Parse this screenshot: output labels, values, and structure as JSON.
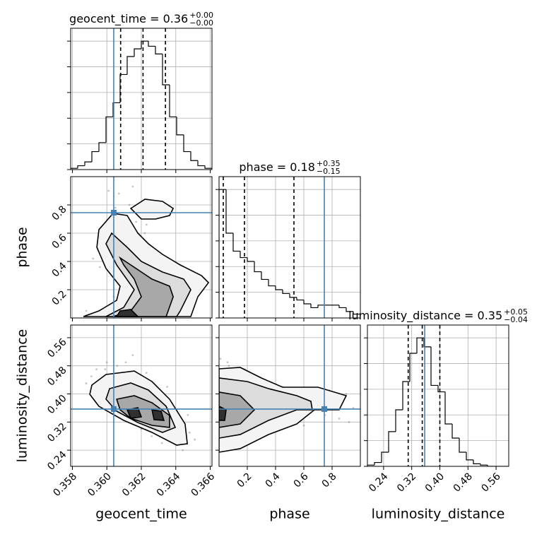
{
  "chart_data": [
    {
      "type": "histogram",
      "title": "geocent_time = 0.36",
      "title_upper": "+0.00",
      "title_lower": "−0.00",
      "bins": [
        0.3579,
        0.35831,
        0.35872,
        0.35913,
        0.35954,
        0.35995,
        0.36036,
        0.36077,
        0.36118,
        0.36159,
        0.362,
        0.36241,
        0.36282,
        0.36323,
        0.36364,
        0.36405,
        0.36446,
        0.36487,
        0.36528,
        0.36569,
        0.3661
      ],
      "values": [
        1,
        3,
        6,
        14,
        21,
        41,
        52,
        74,
        88,
        94,
        100,
        96,
        90,
        66,
        41,
        27,
        14,
        7,
        3,
        1
      ],
      "color": "#000000",
      "xlim": [
        0.3579,
        0.3661
      ],
      "ylim": [
        0,
        110
      ],
      "xticks": [
        0.358,
        {
          "value": 0.36,
          "label": "0.360"
        },
        0.362,
        0.364,
        0.366
      ],
      "yticks": [
        0,
        20,
        40,
        60,
        80,
        100
      ],
      "quantiles": [
        0.3608,
        0.3621,
        0.3634
      ],
      "truth": 0.3604,
      "truth_color": "#4682b4",
      "grid": true
    },
    {
      "type": "contour",
      "ylabel": "phase",
      "xlim": [
        0.3579,
        0.3661
      ],
      "ylim": [
        0,
        1
      ],
      "xticks": [
        0.358,
        {
          "value": 0.36,
          "label": "0.360"
        },
        0.362,
        0.364,
        0.366
      ],
      "yticks": [
        0.2,
        0.4,
        0.6,
        0.8
      ],
      "samples": {
        "color": "#808080",
        "x": [
          0.3588,
          0.3592,
          0.3596,
          0.3599,
          0.3601,
          0.3603,
          0.3605,
          0.3607,
          0.3609,
          0.3611,
          0.3613,
          0.3615,
          0.3617,
          0.3619,
          0.3621,
          0.3623,
          0.3625,
          0.3627,
          0.3629,
          0.3631,
          0.3633,
          0.3635,
          0.3637,
          0.364,
          0.3643,
          0.3646,
          0.3649,
          0.3652,
          0.3598,
          0.3604,
          0.361,
          0.3616,
          0.3622,
          0.3628,
          0.3602,
          0.3606
        ],
        "y": [
          0.05,
          0.42,
          0.36,
          0.58,
          0.9,
          0.62,
          0.78,
          0.88,
          0.55,
          0.47,
          0.8,
          0.93,
          0.68,
          0.72,
          0.82,
          0.66,
          0.45,
          0.38,
          0.35,
          0.31,
          0.28,
          0.22,
          0.33,
          0.18,
          0.26,
          0.3,
          0.12,
          0.2,
          0.02,
          0.15,
          0.3,
          0.5,
          0.6,
          0.1,
          0.7,
          0.45
        ]
      },
      "contours": [
        {
          "fill": "#f4f4f4",
          "x": [
            0.35864,
            0.35954,
            0.36057,
            0.36077,
            0.35995,
            0.35942,
            0.35954,
            0.36036,
            0.36118,
            0.3618,
            0.36241,
            0.36323,
            0.36426,
            0.36549,
            0.3659,
            0.36528,
            0.36487
          ],
          "y": [
            0.01,
            0.05,
            0.125,
            0.225,
            0.35,
            0.5,
            0.625,
            0.74,
            0.725,
            0.6,
            0.525,
            0.45,
            0.375,
            0.3,
            0.25,
            0.15,
            0.01
          ]
        },
        {
          "fill": "#f4f4f4",
          "x": [
            0.36139,
            0.36221,
            0.36323,
            0.36385,
            0.36364,
            0.36282,
            0.362
          ],
          "y": [
            0.775,
            0.84,
            0.825,
            0.775,
            0.725,
            0.7,
            0.7
          ]
        },
        {
          "fill": "#dcdcdc",
          "x": [
            0.35995,
            0.36098,
            0.36159,
            0.36057,
            0.35995,
            0.36028,
            0.36118,
            0.362,
            0.36323,
            0.36446,
            0.36487,
            0.36426,
            0.36405
          ],
          "y": [
            0.01,
            0.075,
            0.2,
            0.375,
            0.525,
            0.6,
            0.5,
            0.4,
            0.325,
            0.275,
            0.2,
            0.05,
            0.01
          ]
        },
        {
          "fill": "#a8a8a8",
          "x": [
            0.36036,
            0.36139,
            0.362,
            0.36159,
            0.36098,
            0.36077,
            0.36139,
            0.36262,
            0.36364,
            0.36385,
            0.36344
          ],
          "y": [
            0.01,
            0.05,
            0.15,
            0.275,
            0.375,
            0.425,
            0.375,
            0.275,
            0.225,
            0.15,
            0.01
          ]
        },
        {
          "fill": "#303030",
          "x": [
            0.36057,
            0.36077,
            0.36139,
            0.3618
          ],
          "y": [
            0.01,
            0.05,
            0.06,
            0.01
          ]
        }
      ],
      "truth": [
        0.3604,
        0.745
      ],
      "truth_color": "#4682b4",
      "grid": true
    },
    {
      "type": "histogram",
      "title": "phase = 0.18",
      "title_upper": "+0.35",
      "title_lower": "−0.15",
      "bins": [
        0,
        0.05,
        0.1,
        0.15,
        0.2,
        0.25,
        0.3,
        0.35,
        0.4,
        0.45,
        0.5,
        0.55,
        0.6,
        0.65,
        0.7,
        0.75,
        0.8,
        0.85,
        0.9,
        0.95,
        1.0
      ],
      "values": [
        100,
        66,
        52,
        47,
        44,
        36,
        30,
        25,
        22,
        19,
        16,
        14,
        11,
        8,
        10,
        10,
        10,
        8,
        5,
        3
      ],
      "color": "#000000",
      "xlim": [
        0,
        1
      ],
      "ylim": [
        0,
        110
      ],
      "xticks": [
        0.2,
        0.4,
        0.6,
        0.8
      ],
      "yticks": [
        0,
        20,
        40,
        60,
        80,
        100
      ],
      "quantiles": [
        0.03,
        0.18,
        0.53
      ],
      "truth": 0.745,
      "truth_color": "#4682b4",
      "grid": true
    },
    {
      "type": "contour",
      "xlabel": "geocent_time",
      "ylabel": "luminosity_distance",
      "xlim": [
        0.3579,
        0.3661
      ],
      "ylim": [
        0.194,
        0.596
      ],
      "xticks": [
        0.358,
        {
          "value": 0.36,
          "label": "0.360"
        },
        0.362,
        0.364,
        0.366
      ],
      "yticks": [
        0.24,
        0.32,
        {
          "value": 0.4,
          "label": "0.40"
        },
        0.48,
        0.56
      ],
      "samples": {
        "color": "#808080",
        "x": [
          0.3588,
          0.3591,
          0.3594,
          0.3597,
          0.36,
          0.3603,
          0.3606,
          0.3609,
          0.3612,
          0.3615,
          0.3618,
          0.3621,
          0.3624,
          0.3627,
          0.363,
          0.3633,
          0.3636,
          0.3639,
          0.3642,
          0.3645,
          0.3648,
          0.3651,
          0.3596,
          0.3602,
          0.3608,
          0.3614,
          0.362,
          0.3626,
          0.3632,
          0.3638,
          0.3644,
          0.3599,
          0.3611,
          0.3623,
          0.3635,
          0.3647
        ],
        "y": [
          0.43,
          0.45,
          0.47,
          0.4,
          0.49,
          0.44,
          0.48,
          0.46,
          0.42,
          0.51,
          0.44,
          0.39,
          0.41,
          0.35,
          0.37,
          0.3,
          0.33,
          0.28,
          0.31,
          0.26,
          0.29,
          0.27,
          0.37,
          0.39,
          0.35,
          0.33,
          0.3,
          0.28,
          0.26,
          0.36,
          0.24,
          0.47,
          0.49,
          0.46,
          0.42,
          0.34
        ]
      },
      "contours": [
        {
          "fill": "#f4f4f4",
          "x": [
            0.35913,
            0.35995,
            0.36159,
            0.36262,
            0.36364,
            0.36454,
            0.36467,
            0.36405,
            0.36262,
            0.36098,
            0.35954,
            0.35901
          ],
          "y": [
            0.4252,
            0.4553,
            0.4653,
            0.4352,
            0.385,
            0.3146,
            0.2583,
            0.2543,
            0.2905,
            0.3247,
            0.3648,
            0.399
          ]
        },
        {
          "fill": "#dcdcdc",
          "x": [
            0.36016,
            0.36139,
            0.36241,
            0.36344,
            0.36397,
            0.36323,
            0.3618,
            0.36057,
            0.35995
          ],
          "y": [
            0.4151,
            0.4312,
            0.4111,
            0.3648,
            0.3046,
            0.2905,
            0.3186,
            0.3508,
            0.385
          ]
        },
        {
          "fill": "#a8a8a8",
          "x": [
            0.36057,
            0.36159,
            0.36262,
            0.36364,
            0.36364,
            0.36262,
            0.36139,
            0.36077
          ],
          "y": [
            0.385,
            0.395,
            0.3749,
            0.3387,
            0.3046,
            0.3106,
            0.3307,
            0.3548
          ]
        },
        {
          "fill": "#303030",
          "x": [
            0.36118,
            0.3618,
            0.362,
            0.36139
          ],
          "y": [
            0.3548,
            0.3608,
            0.3347,
            0.3307
          ]
        },
        {
          "fill": "#303030",
          "x": [
            0.36262,
            0.36315,
            0.36331,
            0.36274
          ],
          "y": [
            0.3548,
            0.3508,
            0.3247,
            0.3267
          ]
        }
      ],
      "truth": [
        0.3604,
        0.357
      ],
      "truth_color": "#4682b4",
      "grid": true
    },
    {
      "type": "contour",
      "xlabel": "phase",
      "xlim": [
        0,
        1
      ],
      "ylim": [
        0.194,
        0.596
      ],
      "xticks": [
        0.2,
        0.4,
        0.6,
        0.8
      ],
      "yticks": [
        0.24,
        0.32,
        {
          "value": 0.4,
          "label": "0.40"
        },
        0.48,
        0.56
      ],
      "samples": {
        "color": "#808080",
        "x": [
          0.01,
          0.02,
          0.03,
          0.05,
          0.07,
          0.09,
          0.12,
          0.15,
          0.18,
          0.22,
          0.26,
          0.3,
          0.34,
          0.38,
          0.42,
          0.46,
          0.5,
          0.55,
          0.6,
          0.65,
          0.7,
          0.75,
          0.8,
          0.85,
          0.9,
          0.95,
          0.04,
          0.1,
          0.2,
          0.3,
          0.45,
          0.6,
          0.78,
          0.92,
          0.06,
          0.14
        ],
        "y": [
          0.5,
          0.26,
          0.44,
          0.24,
          0.48,
          0.29,
          0.45,
          0.27,
          0.47,
          0.3,
          0.43,
          0.31,
          0.42,
          0.33,
          0.4,
          0.34,
          0.39,
          0.36,
          0.41,
          0.35,
          0.38,
          0.34,
          0.37,
          0.33,
          0.4,
          0.36,
          0.33,
          0.38,
          0.35,
          0.37,
          0.42,
          0.31,
          0.41,
          0.32,
          0.49,
          0.25
        ]
      },
      "contours": [
        {
          "fill": "#f4f4f4",
          "x": [
            0,
            0.15,
            0.3,
            0.45,
            0.7,
            0.9,
            0.85,
            0.675,
            0.55,
            0.35,
            0.15,
            0
          ],
          "y": [
            0.4714,
            0.4754,
            0.4453,
            0.4191,
            0.4191,
            0.395,
            0.3548,
            0.3548,
            0.3146,
            0.2845,
            0.2443,
            0.2342
          ]
        },
        {
          "fill": "#dcdcdc",
          "x": [
            0,
            0.2,
            0.35,
            0.55,
            0.65,
            0.66,
            0.55,
            0.35,
            0.15,
            0
          ],
          "y": [
            0.4453,
            0.4352,
            0.4151,
            0.395,
            0.3789,
            0.3548,
            0.3548,
            0.3247,
            0.2845,
            0.2744
          ]
        },
        {
          "fill": "#a8a8a8",
          "x": [
            0,
            0.15,
            0.25,
            0.15,
            0
          ],
          "y": [
            0.4051,
            0.395,
            0.3548,
            0.3146,
            0.3046
          ]
        },
        {
          "fill": "#303030",
          "x": [
            0,
            0.05,
            0.04,
            0
          ],
          "y": [
            0.3649,
            0.3548,
            0.3247,
            0.3247
          ]
        }
      ],
      "truth": [
        0.745,
        0.357
      ],
      "truth_color": "#4682b4",
      "grid": true
    },
    {
      "type": "histogram",
      "title": "luminosity_distance = 0.35",
      "title_upper": "+0.05",
      "title_lower": "−0.04",
      "xlabel": "luminosity_distance",
      "bins": [
        0.194,
        0.2141,
        0.2342,
        0.2543,
        0.2744,
        0.2945,
        0.3146,
        0.3347,
        0.3548,
        0.3749,
        0.395,
        0.4151,
        0.4352,
        0.4553,
        0.4754,
        0.4955,
        0.5156,
        0.5357,
        0.5558,
        0.5759,
        0.596
      ],
      "values": [
        1,
        3,
        11,
        27,
        44,
        66,
        88,
        100,
        93,
        63,
        58,
        33,
        22,
        11,
        5,
        2,
        1,
        0,
        0,
        0
      ],
      "color": "#000000",
      "xlim": [
        0.194,
        0.596
      ],
      "ylim": [
        0,
        110
      ],
      "xticks": [
        0.24,
        0.32,
        {
          "value": 0.4,
          "label": "0.40"
        },
        0.48,
        0.56
      ],
      "yticks": [
        0,
        20,
        40,
        60,
        80,
        100
      ],
      "quantiles": [
        0.31,
        0.35,
        0.4
      ],
      "truth": 0.357,
      "truth_color": "#4682b4",
      "grid": true
    }
  ]
}
